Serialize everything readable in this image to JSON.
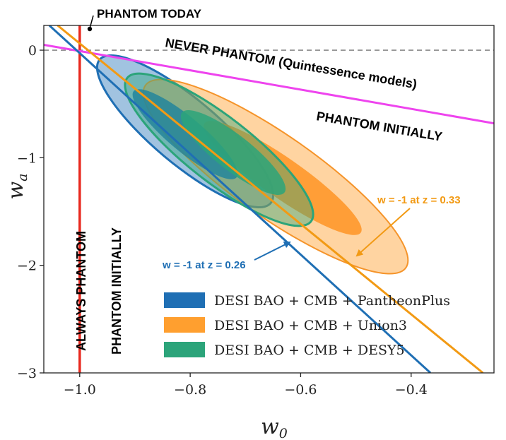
{
  "chart_data": {
    "type": "scatter",
    "title": "",
    "xlabel": "w0",
    "ylabel": "wa",
    "xlim": [
      -1.065,
      -0.25
    ],
    "ylim": [
      -3.0,
      0.23
    ],
    "x_ticks": [
      -1.0,
      -0.8,
      -0.6,
      -0.4
    ],
    "x_tick_labels": [
      "−1.0",
      "−0.8",
      "−0.6",
      "−0.4"
    ],
    "y_ticks": [
      0,
      -1,
      -2,
      -3
    ],
    "y_tick_labels": [
      "0",
      "−1",
      "−2",
      "−3"
    ],
    "grid": false,
    "legend_position": "lower-right",
    "series": [
      {
        "name": "DESI BAO + CMB + PantheonPlus",
        "color": "#1f6fb4",
        "center": [
          -0.83,
          -0.75
        ]
      },
      {
        "name": "DESI BAO + CMB + Union3",
        "color": "#ff9f2f",
        "center": [
          -0.68,
          -1.0
        ]
      },
      {
        "name": "DESI BAO + CMB + DESY5",
        "color": "#2ca47a",
        "center": [
          -0.76,
          -0.83
        ]
      }
    ],
    "reference_lines": [
      {
        "type": "horizontal",
        "y": 0,
        "style": "dashed",
        "color": "#888888"
      },
      {
        "type": "vertical",
        "x": -1.0,
        "color": "#e8281e"
      },
      {
        "type": "line",
        "color": "#ee44ee",
        "points": [
          [
            -1.065,
            0.05
          ],
          [
            -0.25,
            -0.68
          ]
        ]
      },
      {
        "type": "line",
        "color": "#1f6fb4",
        "points": [
          [
            -1.055,
            0.23
          ],
          [
            -0.365,
            -3.0
          ]
        ]
      },
      {
        "type": "line",
        "color": "#f29a14",
        "points": [
          [
            -1.04,
            0.23
          ],
          [
            -0.27,
            -3.0
          ]
        ]
      }
    ],
    "annotations": {
      "phantom_today": "PHANTOM TODAY",
      "never_phantom": "NEVER PHANTOM (Quintessence models)",
      "phantom_initially_right": "PHANTOM INITIALLY",
      "always_phantom": "ALWAYS PHANTOM",
      "phantom_initially_left": "PHANTOM INITIALLY",
      "w026_label": "w = -1 at z = 0.26",
      "w033_label": "w = -1 at z = 0.33"
    }
  }
}
